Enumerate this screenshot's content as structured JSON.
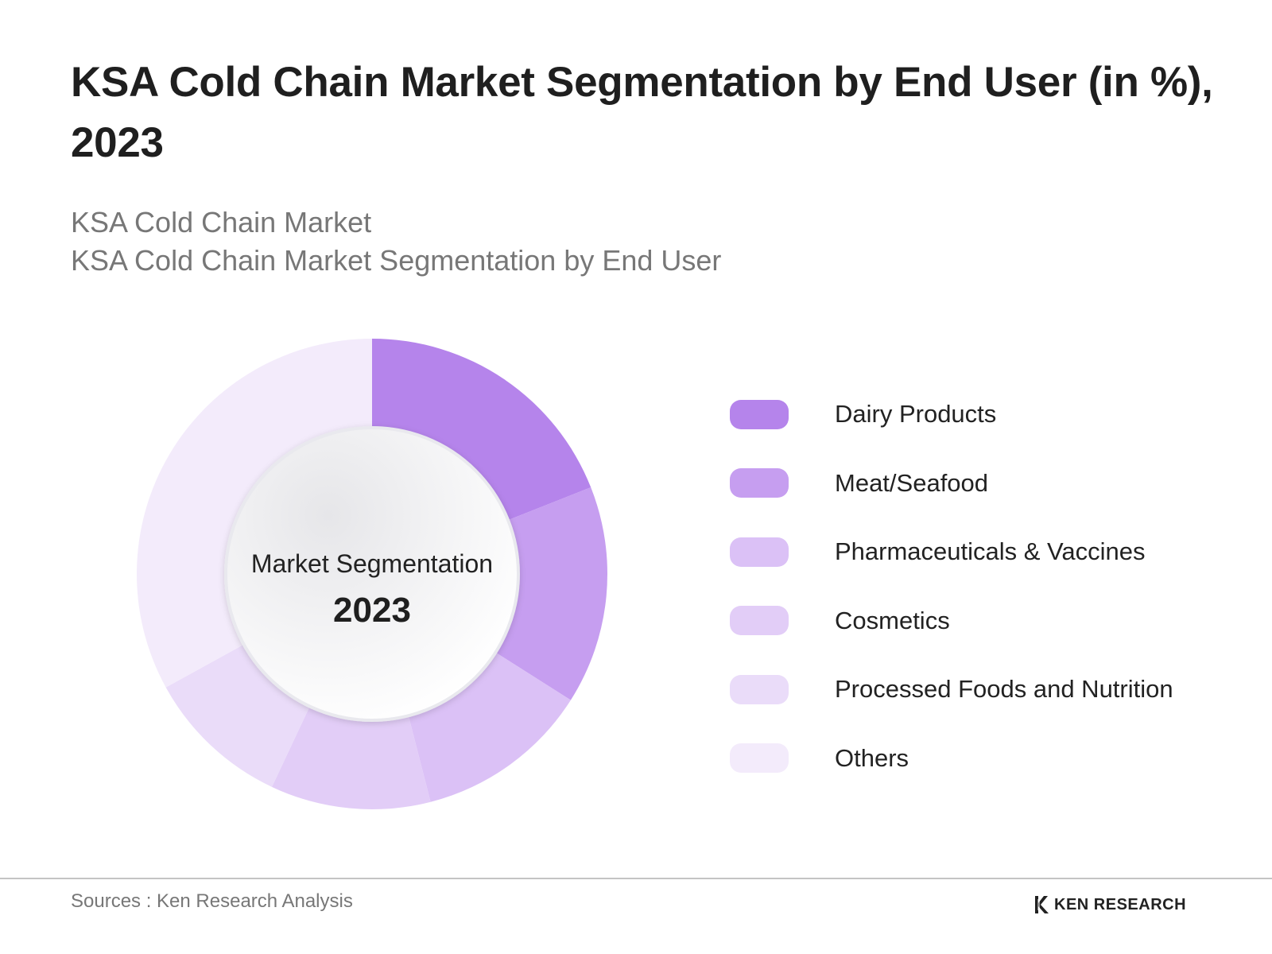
{
  "title": "KSA Cold Chain Market Segmentation by End User (in %), 2023",
  "subtitle": {
    "line1": "KSA Cold Chain Market",
    "line2": "KSA Cold Chain Market Segmentation by End User"
  },
  "chart_data": {
    "type": "pie",
    "variant": "donut",
    "center_label": "Market Segmentation",
    "center_year": "2023",
    "categories": [
      "Dairy Products",
      "Meat/Seafood",
      "Pharmaceuticals & Vaccines",
      "Cosmetics",
      "Processed Foods and Nutrition",
      "Others"
    ],
    "values": [
      19,
      15,
      12,
      11,
      10,
      33
    ],
    "colors": [
      "#b584eb",
      "#c69ef0",
      "#dbc1f6",
      "#e2cdf7",
      "#eadcf9",
      "#f3ebfb"
    ],
    "legend_position": "right"
  },
  "footer": {
    "source": "Sources : Ken Research Analysis",
    "brand": "KEN RESEARCH"
  }
}
